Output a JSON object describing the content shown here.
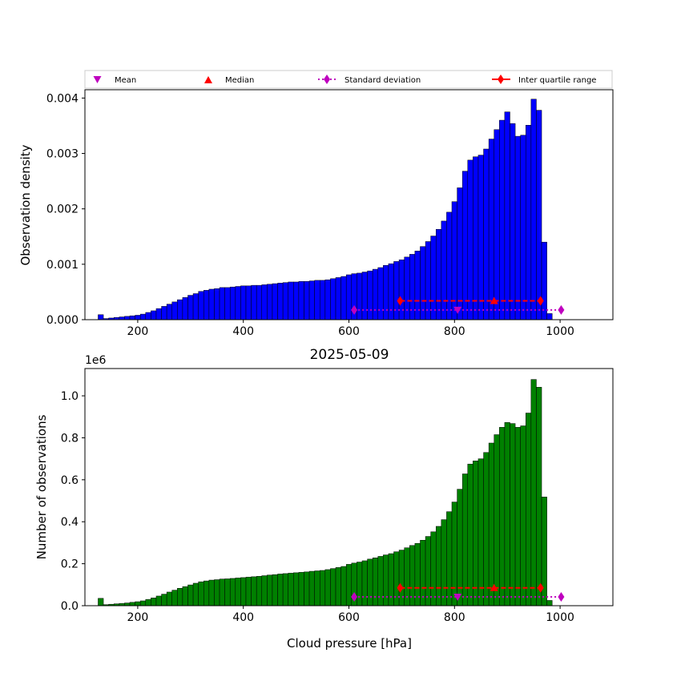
{
  "legend": {
    "placement": "top",
    "items": [
      {
        "label": "Mean",
        "marker": "triangle-down",
        "color": "#bf00bf"
      },
      {
        "label": "Median",
        "marker": "triangle-up",
        "color": "#ff0000"
      },
      {
        "label": "Standard deviation",
        "marker": "diamond",
        "line": "dotted",
        "color": "#bf00bf"
      },
      {
        "label": "Inter quartile range",
        "marker": "diamond",
        "line": "solid",
        "color": "#ff0000"
      }
    ]
  },
  "chart_data": [
    {
      "type": "bar",
      "title": "",
      "xlabel": "",
      "ylabel": "Observation density",
      "bar_color": "#0000ff",
      "x_ticks": [
        200,
        400,
        600,
        800,
        1000
      ],
      "y_ticks": [
        "0.000",
        "0.001",
        "0.002",
        "0.003",
        "0.004"
      ],
      "xlim": [
        100,
        1100
      ],
      "ylim": [
        0,
        0.00415
      ],
      "bin_edges_start": 125,
      "bin_width": 10,
      "values": [
        9e-05,
        2e-05,
        3e-05,
        4e-05,
        5e-05,
        6e-05,
        7e-05,
        8e-05,
        0.0001,
        0.00013,
        0.00016,
        0.0002,
        0.00024,
        0.00028,
        0.00032,
        0.00036,
        0.0004,
        0.00044,
        0.00047,
        0.00051,
        0.00053,
        0.00055,
        0.00056,
        0.00058,
        0.00058,
        0.00059,
        0.0006,
        0.00061,
        0.00061,
        0.00062,
        0.00062,
        0.00063,
        0.00064,
        0.00065,
        0.00066,
        0.00067,
        0.00068,
        0.00068,
        0.00069,
        0.00069,
        0.0007,
        0.00071,
        0.00071,
        0.00072,
        0.00074,
        0.00076,
        0.00078,
        0.00081,
        0.00083,
        0.00084,
        0.00086,
        0.00088,
        0.00091,
        0.00094,
        0.00098,
        0.00101,
        0.00105,
        0.00108,
        0.00113,
        0.00118,
        0.00124,
        0.00132,
        0.00141,
        0.00151,
        0.00163,
        0.00178,
        0.00194,
        0.00213,
        0.00238,
        0.00268,
        0.00288,
        0.00294,
        0.00297,
        0.00308,
        0.00326,
        0.00343,
        0.0036,
        0.00375,
        0.00354,
        0.00331,
        0.00333,
        0.00351,
        0.00398,
        0.00378,
        0.0014,
        0.00011
      ],
      "stats": {
        "mean": {
          "x": 806,
          "y": 0.000175
        },
        "median": {
          "x": 875,
          "y": 0.00034
        },
        "std_dev": {
          "x_low": 610,
          "x_high": 1002,
          "y": 0.000175
        },
        "iqr": {
          "x_low": 697,
          "x_high": 963,
          "y": 0.00034
        }
      }
    },
    {
      "type": "bar",
      "title": "2025-05-09",
      "xlabel": "Cloud pressure [hPa]",
      "ylabel": "Number of observations",
      "y_multiplier": "1e6",
      "bar_color": "#008000",
      "x_ticks": [
        200,
        400,
        600,
        800,
        1000
      ],
      "y_ticks": [
        "0.0",
        "0.2",
        "0.4",
        "0.6",
        "0.8",
        "1.0"
      ],
      "xlim": [
        100,
        1100
      ],
      "ylim": [
        0,
        1130000
      ],
      "bin_edges_start": 125,
      "bin_width": 10,
      "values": [
        35000,
        5000,
        7000,
        9000,
        11000,
        13000,
        16000,
        19000,
        23000,
        30000,
        37000,
        46000,
        55000,
        65000,
        74000,
        83000,
        91000,
        99000,
        107000,
        114000,
        118000,
        122000,
        124000,
        127000,
        128000,
        130000,
        132000,
        134000,
        136000,
        138000,
        140000,
        143000,
        146000,
        148000,
        151000,
        153000,
        155000,
        157000,
        159000,
        161000,
        164000,
        166000,
        168000,
        172000,
        177000,
        182000,
        187000,
        197000,
        203000,
        208000,
        214000,
        222000,
        228000,
        235000,
        242000,
        248000,
        257000,
        265000,
        276000,
        287000,
        297000,
        312000,
        330000,
        352000,
        378000,
        410000,
        448000,
        494000,
        555000,
        628000,
        675000,
        690000,
        700000,
        730000,
        775000,
        815000,
        850000,
        873000,
        868000,
        850000,
        857000,
        918000,
        1078000,
        1041000,
        518000,
        25000
      ],
      "stats": {
        "mean": {
          "x": 806,
          "y": 42000
        },
        "median": {
          "x": 875,
          "y": 85000
        },
        "std_dev": {
          "x_low": 610,
          "x_high": 1002,
          "y": 42000
        },
        "iqr": {
          "x_low": 697,
          "x_high": 963,
          "y": 85000
        }
      }
    }
  ]
}
